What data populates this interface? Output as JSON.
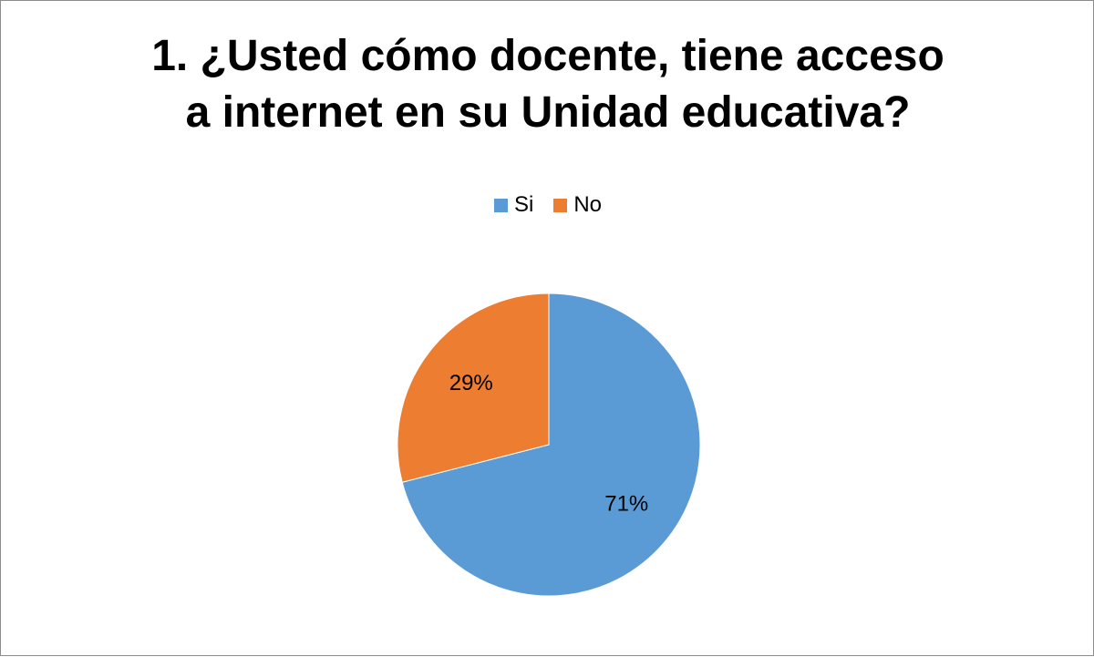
{
  "chart_data": {
    "type": "pie",
    "title_lines": [
      "1. ¿Usted cómo docente, tiene acceso",
      "a internet en su Unidad educativa?"
    ],
    "categories": [
      "Si",
      "No"
    ],
    "values": [
      71,
      29
    ],
    "data_labels": [
      "71%",
      "29%"
    ],
    "colors": [
      "#5b9bd5",
      "#ed7d31"
    ],
    "legend_position": "top"
  }
}
